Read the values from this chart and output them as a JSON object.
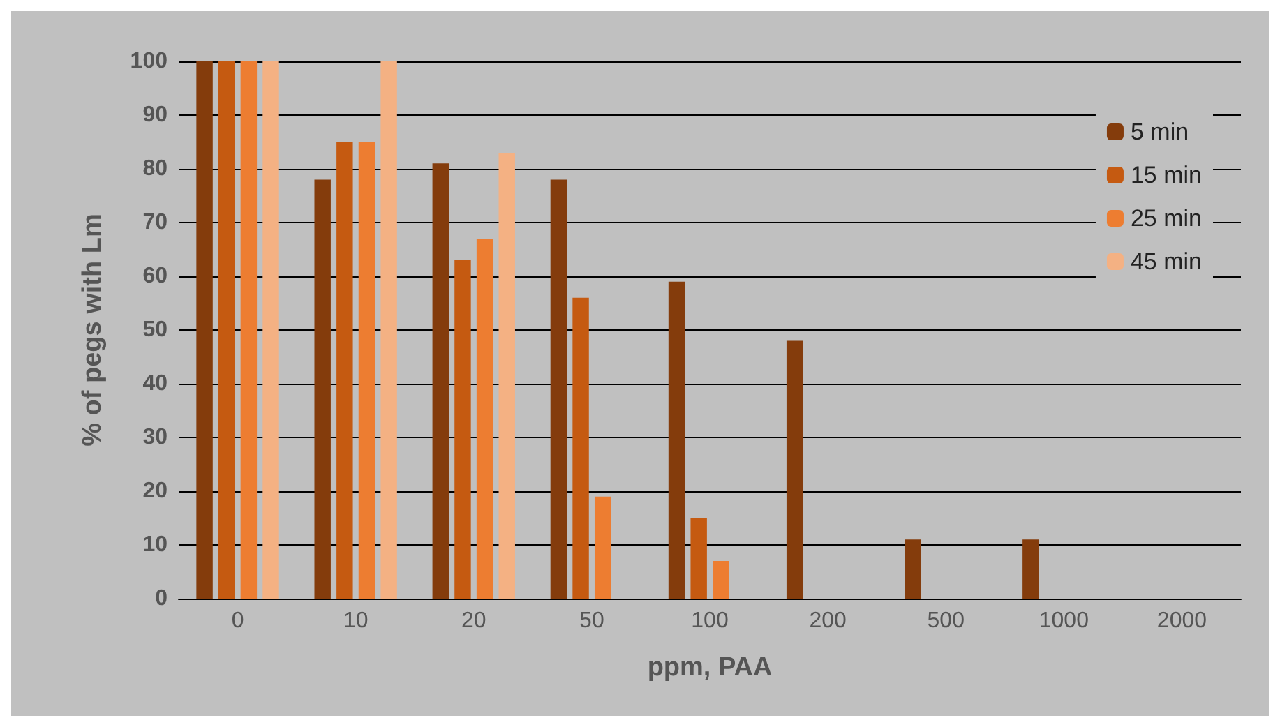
{
  "chart_data": {
    "type": "bar",
    "xlabel": "ppm, PAA",
    "ylabel": "% of pegs with Lm",
    "categories": [
      "0",
      "10",
      "20",
      "50",
      "100",
      "200",
      "500",
      "1000",
      "2000"
    ],
    "series": [
      {
        "name": "5 min",
        "color": "#843c0c",
        "values": [
          100,
          78,
          81,
          78,
          59,
          48,
          11,
          11,
          0
        ]
      },
      {
        "name": "15 min",
        "color": "#c55a11",
        "values": [
          100,
          85,
          63,
          56,
          15,
          0,
          0,
          0,
          0
        ]
      },
      {
        "name": "25 min",
        "color": "#ed7d31",
        "values": [
          100,
          85,
          67,
          19,
          7,
          0,
          0,
          0,
          0
        ]
      },
      {
        "name": "45 min",
        "color": "#f4b183",
        "values": [
          100,
          100,
          83,
          0,
          0,
          0,
          0,
          0,
          0
        ]
      }
    ],
    "ylim": [
      0,
      100
    ],
    "yticks": [
      0,
      10,
      20,
      30,
      40,
      50,
      60,
      70,
      80,
      90,
      100
    ],
    "grid": "y",
    "legend": "top right"
  }
}
